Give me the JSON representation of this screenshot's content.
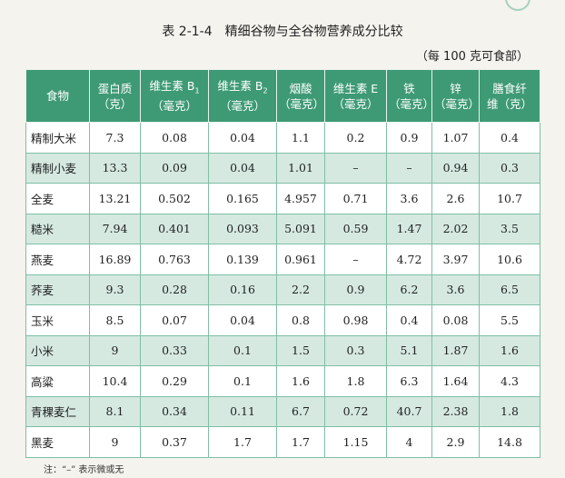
{
  "title": "表 2-1-4　精细谷物与全谷物营养成分比较",
  "unit_note": "（每 100 克可食部）",
  "headers": {
    "food": "食物",
    "protein": "蛋白质",
    "protein_unit": "（克）",
    "vb1_base": "维生素 B",
    "vb1_sub": "1",
    "vb1_unit": "（毫克）",
    "vb2_base": "维生素 B",
    "vb2_sub": "2",
    "vb2_unit": "（毫克）",
    "niacin": "烟酸",
    "niacin_unit": "（毫克）",
    "ve": "维生素 E",
    "ve_unit": "（毫克）",
    "iron": "铁",
    "iron_unit": "（毫克）",
    "zinc": "锌",
    "zinc_unit": "（毫克）",
    "fiber_line1": "膳食纤",
    "fiber_line2": "维（克）"
  },
  "rows": [
    {
      "food": "精制大米",
      "protein": "7.3",
      "vb1": "0.08",
      "vb2": "0.04",
      "niacin": "1.1",
      "ve": "0.2",
      "iron": "0.9",
      "zinc": "1.07",
      "fiber": "0.4"
    },
    {
      "food": "精制小麦",
      "protein": "13.3",
      "vb1": "0.09",
      "vb2": "0.04",
      "niacin": "1.01",
      "ve": "–",
      "iron": "–",
      "zinc": "0.94",
      "fiber": "0.3"
    },
    {
      "food": "全麦",
      "protein": "13.21",
      "vb1": "0.502",
      "vb2": "0.165",
      "niacin": "4.957",
      "ve": "0.71",
      "iron": "3.6",
      "zinc": "2.6",
      "fiber": "10.7"
    },
    {
      "food": "糙米",
      "protein": "7.94",
      "vb1": "0.401",
      "vb2": "0.093",
      "niacin": "5.091",
      "ve": "0.59",
      "iron": "1.47",
      "zinc": "2.02",
      "fiber": "3.5"
    },
    {
      "food": "燕麦",
      "protein": "16.89",
      "vb1": "0.763",
      "vb2": "0.139",
      "niacin": "0.961",
      "ve": "–",
      "iron": "4.72",
      "zinc": "3.97",
      "fiber": "10.6"
    },
    {
      "food": "荞麦",
      "protein": "9.3",
      "vb1": "0.28",
      "vb2": "0.16",
      "niacin": "2.2",
      "ve": "0.9",
      "iron": "6.2",
      "zinc": "3.6",
      "fiber": "6.5"
    },
    {
      "food": "玉米",
      "protein": "8.5",
      "vb1": "0.07",
      "vb2": "0.04",
      "niacin": "0.8",
      "ve": "0.98",
      "iron": "0.4",
      "zinc": "0.08",
      "fiber": "5.5"
    },
    {
      "food": "小米",
      "protein": "9",
      "vb1": "0.33",
      "vb2": "0.1",
      "niacin": "1.5",
      "ve": "0.3",
      "iron": "5.1",
      "zinc": "1.87",
      "fiber": "1.6"
    },
    {
      "food": "高粱",
      "protein": "10.4",
      "vb1": "0.29",
      "vb2": "0.1",
      "niacin": "1.6",
      "ve": "1.8",
      "iron": "6.3",
      "zinc": "1.64",
      "fiber": "4.3"
    },
    {
      "food": "青稞麦仁",
      "protein": "8.1",
      "vb1": "0.34",
      "vb2": "0.11",
      "niacin": "6.7",
      "ve": "0.72",
      "iron": "40.7",
      "zinc": "2.38",
      "fiber": "1.8"
    },
    {
      "food": "黑麦",
      "protein": "9",
      "vb1": "0.37",
      "vb2": "1.7",
      "niacin": "1.7",
      "ve": "1.15",
      "iron": "4",
      "zinc": "2.9",
      "fiber": "14.8"
    }
  ],
  "footnote": "注：“–” 表示微或无",
  "colors": {
    "header_bg": "#3e9a74",
    "stripe": "#d5e9e1",
    "border": "#7fbfa4"
  }
}
